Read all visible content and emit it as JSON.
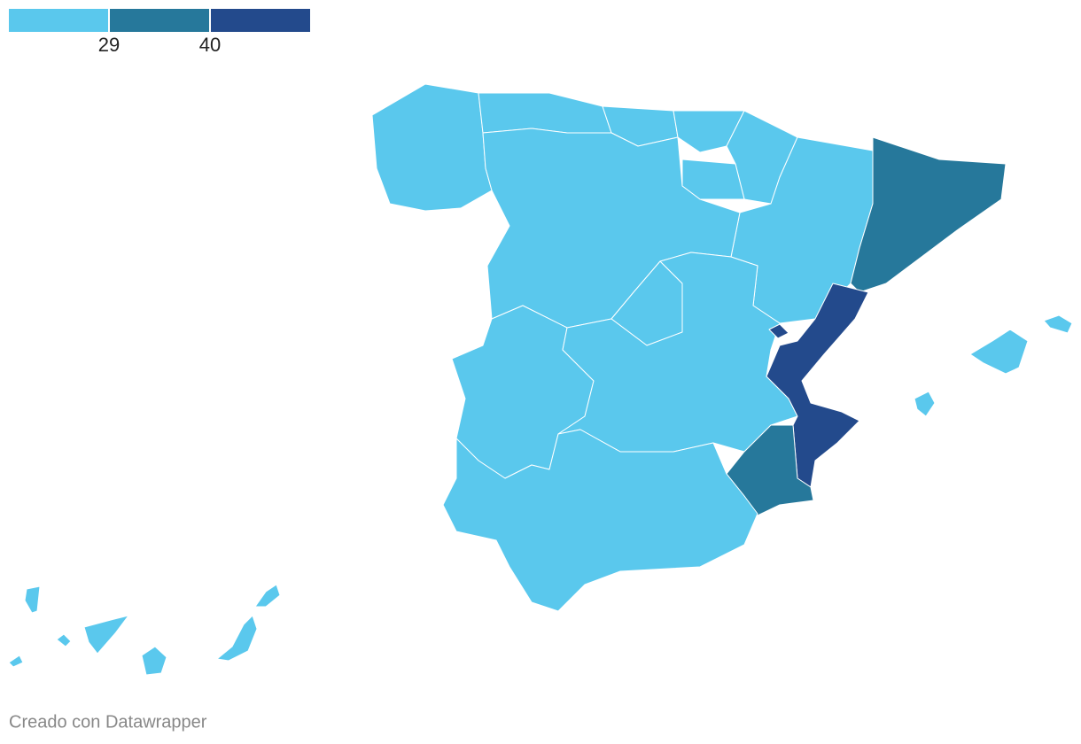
{
  "legend": {
    "colors": [
      "#5ac8ed",
      "#26789b",
      "#234a8c"
    ],
    "ticks": [
      "29",
      "40"
    ]
  },
  "footer": "Creado con Datawrapper"
}
